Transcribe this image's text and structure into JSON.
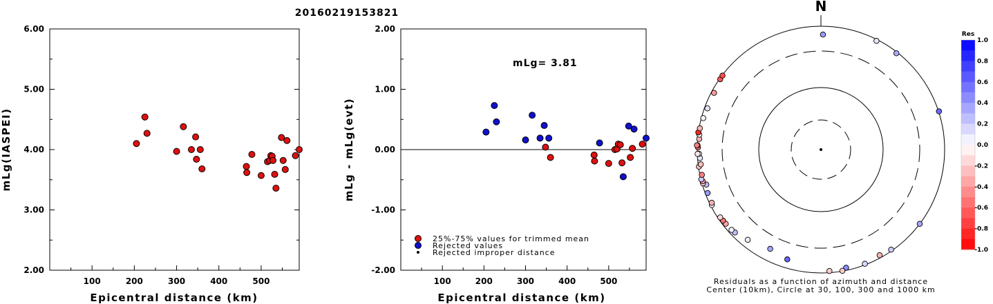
{
  "title": "20160219153821",
  "chart_data": [
    {
      "type": "scatter",
      "name": "magnitude-vs-distance",
      "xlabel": "Epicentral distance (km)",
      "ylabel": "mLg(IASPEI)",
      "xlim": [
        0,
        590
      ],
      "ylim": [
        2.0,
        6.0
      ],
      "xticks": [
        "100",
        "200",
        "300",
        "400",
        "500"
      ],
      "yticks": [
        "2.00",
        "3.00",
        "4.00",
        "5.00",
        "6.00"
      ],
      "points_color": "#dd1111",
      "points": [
        {
          "x": 205,
          "y": 4.1
        },
        {
          "x": 225,
          "y": 4.54
        },
        {
          "x": 230,
          "y": 4.27
        },
        {
          "x": 300,
          "y": 3.97
        },
        {
          "x": 316,
          "y": 4.38
        },
        {
          "x": 335,
          "y": 4.0
        },
        {
          "x": 345,
          "y": 4.21
        },
        {
          "x": 347,
          "y": 3.84
        },
        {
          "x": 356,
          "y": 4.0
        },
        {
          "x": 360,
          "y": 3.68
        },
        {
          "x": 465,
          "y": 3.72
        },
        {
          "x": 466,
          "y": 3.62
        },
        {
          "x": 478,
          "y": 3.92
        },
        {
          "x": 500,
          "y": 3.57
        },
        {
          "x": 515,
          "y": 3.8
        },
        {
          "x": 520,
          "y": 3.82
        },
        {
          "x": 523,
          "y": 3.9
        },
        {
          "x": 526,
          "y": 3.89
        },
        {
          "x": 528,
          "y": 3.82
        },
        {
          "x": 532,
          "y": 3.59
        },
        {
          "x": 535,
          "y": 3.36
        },
        {
          "x": 548,
          "y": 4.2
        },
        {
          "x": 552,
          "y": 3.82
        },
        {
          "x": 557,
          "y": 3.67
        },
        {
          "x": 561,
          "y": 4.15
        },
        {
          "x": 581,
          "y": 3.9
        },
        {
          "x": 593,
          "y": 4.0
        }
      ]
    },
    {
      "type": "scatter",
      "name": "residual-vs-distance",
      "xlabel": "Epicentral distance (km)",
      "ylabel": "mLg - mLg(evt)",
      "annotation": "mLg= 3.81",
      "xlim": [
        0,
        590
      ],
      "ylim": [
        -2.0,
        2.0
      ],
      "xticks": [
        "100",
        "200",
        "300",
        "400",
        "500"
      ],
      "yticks": [
        "-2.00",
        "-1.00",
        "0.00",
        "1.00",
        "2.00"
      ],
      "series": [
        {
          "name": "25%-75% values for trimmed mean",
          "color": "#dd1111",
          "points": [
            {
              "x": 348,
              "y": 0.04
            },
            {
              "x": 360,
              "y": -0.13
            },
            {
              "x": 465,
              "y": -0.09
            },
            {
              "x": 466,
              "y": -0.19
            },
            {
              "x": 500,
              "y": -0.23
            },
            {
              "x": 515,
              "y": 0.0
            },
            {
              "x": 520,
              "y": 0.01
            },
            {
              "x": 523,
              "y": 0.09
            },
            {
              "x": 528,
              "y": 0.08
            },
            {
              "x": 532,
              "y": -0.22
            },
            {
              "x": 552,
              "y": -0.13
            },
            {
              "x": 557,
              "y": 0.02
            },
            {
              "x": 581,
              "y": 0.09
            }
          ]
        },
        {
          "name": "Rejected values",
          "color": "#1111cc",
          "points": [
            {
              "x": 205,
              "y": 0.29
            },
            {
              "x": 225,
              "y": 0.73
            },
            {
              "x": 230,
              "y": 0.46
            },
            {
              "x": 300,
              "y": 0.16
            },
            {
              "x": 316,
              "y": 0.57
            },
            {
              "x": 335,
              "y": 0.19
            },
            {
              "x": 345,
              "y": 0.4
            },
            {
              "x": 356,
              "y": 0.19
            },
            {
              "x": 478,
              "y": 0.11
            },
            {
              "x": 535,
              "y": -0.45
            },
            {
              "x": 548,
              "y": 0.39
            },
            {
              "x": 561,
              "y": 0.34
            },
            {
              "x": 593,
              "y": 0.19
            }
          ]
        },
        {
          "name": "Rejected improper distance",
          "color": "#000000",
          "points": []
        }
      ]
    },
    {
      "type": "scatter",
      "name": "residual-azimuth-polar",
      "north_label": "N",
      "caption_line1": "Residuals as a function of azimuth and distance",
      "caption_line2": "Center (10km), Circle at 30, 100, 300 and 1000 km",
      "colorbar_title": "Res",
      "colorbar_ticks": [
        "1.0",
        "0.8",
        "0.6",
        "0.4",
        "0.2",
        "0.0",
        "-0.2",
        "-0.4",
        "-0.6",
        "-0.8",
        "-1.0"
      ],
      "colorbar_range": [
        -1.0,
        1.0
      ],
      "points": [
        {
          "az": 1,
          "dist": 668,
          "res": 0.39
        },
        {
          "az": 27,
          "dist": 935,
          "res": 0.1
        },
        {
          "az": 38,
          "dist": 947,
          "res": 0.33
        },
        {
          "az": 72,
          "dist": 1020,
          "res": 0.58
        },
        {
          "az": 127,
          "dist": 1000,
          "res": 0.35
        },
        {
          "az": 145,
          "dist": 940,
          "res": 0.2
        },
        {
          "az": 151,
          "dist": 880,
          "res": -0.3
        },
        {
          "az": 159,
          "dist": 950,
          "res": 0.15
        },
        {
          "az": 168,
          "dist": 880,
          "res": 0.45
        },
        {
          "az": 170,
          "dist": 985,
          "res": -0.2
        },
        {
          "az": 176,
          "dist": 920,
          "res": -0.2
        },
        {
          "az": 197,
          "dist": 660,
          "res": 0.6
        },
        {
          "az": 207,
          "dist": 560,
          "res": 0.35
        },
        {
          "az": 219,
          "dist": 700,
          "res": 0.07
        },
        {
          "az": 226,
          "dist": 820,
          "res": 0.25
        },
        {
          "az": 228,
          "dist": 850,
          "res": 0.05
        },
        {
          "az": 232,
          "dist": 870,
          "res": -0.35
        },
        {
          "az": 234,
          "dist": 880,
          "res": -0.55
        },
        {
          "az": 236,
          "dist": 900,
          "res": -0.15
        },
        {
          "az": 243,
          "dist": 940,
          "res": 0.05
        },
        {
          "az": 244,
          "dist": 900,
          "res": -0.3
        },
        {
          "az": 249,
          "dist": 895,
          "res": 0.4
        },
        {
          "az": 253,
          "dist": 830,
          "res": 0.25
        },
        {
          "az": 254,
          "dist": 955,
          "res": -0.2
        },
        {
          "az": 255,
          "dist": 940,
          "res": -0.4
        },
        {
          "az": 256,
          "dist": 980,
          "res": 0.2
        },
        {
          "az": 258,
          "dist": 910,
          "res": -0.5
        },
        {
          "az": 262,
          "dist": 975,
          "res": -0.25
        },
        {
          "az": 263,
          "dist": 880,
          "res": -0.25
        },
        {
          "az": 266,
          "dist": 890,
          "res": 0.1
        },
        {
          "az": 268,
          "dist": 920,
          "res": 0.02
        },
        {
          "az": 268,
          "dist": 985,
          "res": -0.1
        },
        {
          "az": 271,
          "dist": 965,
          "res": -0.6
        },
        {
          "az": 272,
          "dist": 990,
          "res": -0.05
        },
        {
          "az": 272,
          "dist": 1020,
          "res": -0.5
        },
        {
          "az": 275,
          "dist": 930,
          "res": -0.3
        },
        {
          "az": 277,
          "dist": 945,
          "res": -0.05
        },
        {
          "az": 278,
          "dist": 1005,
          "res": -0.85
        },
        {
          "az": 280,
          "dist": 965,
          "res": -0.3
        },
        {
          "az": 285,
          "dist": 915,
          "res": -0.05
        },
        {
          "az": 290,
          "dist": 870,
          "res": 0.1
        },
        {
          "az": 298,
          "dist": 880,
          "res": -0.4
        },
        {
          "az": 305,
          "dist": 965,
          "res": -0.65
        },
        {
          "az": 307,
          "dist": 980,
          "res": -0.7
        }
      ]
    }
  ]
}
